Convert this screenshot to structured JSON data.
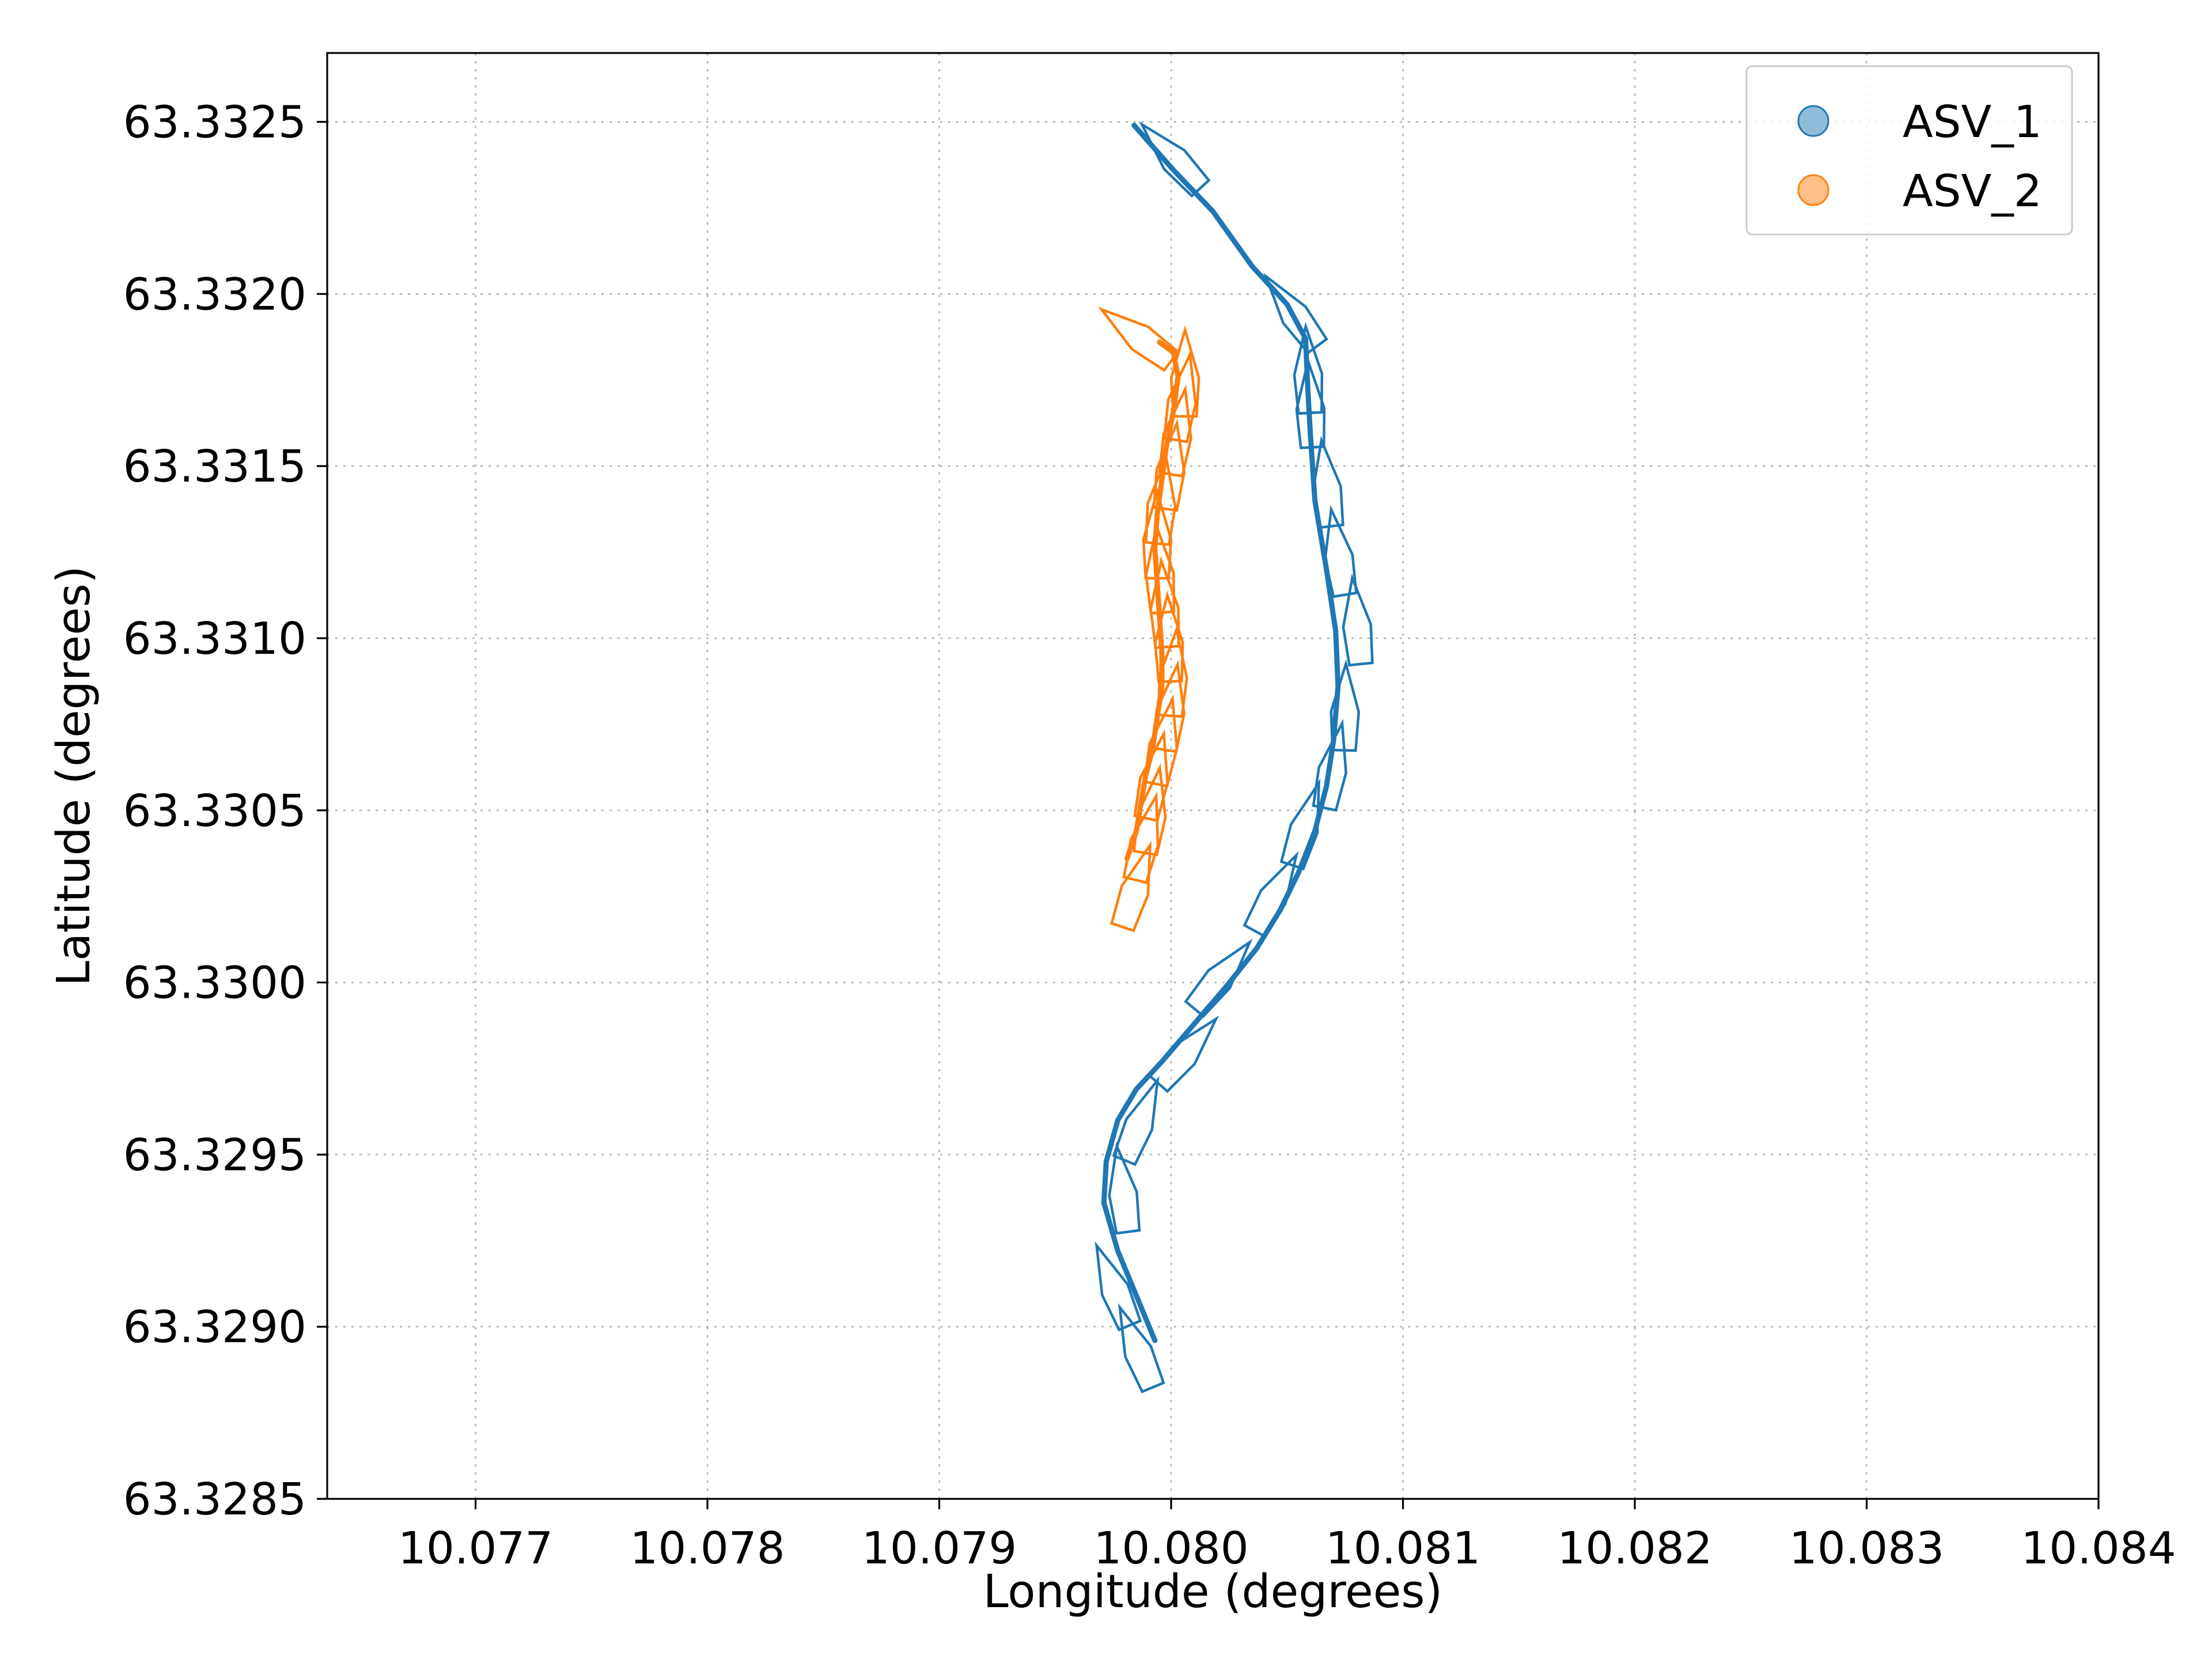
{
  "chart_data": {
    "type": "line",
    "xlabel": "Longitude (degrees)",
    "ylabel": "Latitude (degrees)",
    "xlim": [
      10.07636,
      10.084
    ],
    "ylim": [
      63.3285,
      63.3327
    ],
    "xticks": [
      "10.077",
      "10.078",
      "10.079",
      "10.080",
      "10.081",
      "10.082",
      "10.083",
      "10.084"
    ],
    "yticks": [
      "63.3285",
      "63.3290",
      "63.3295",
      "63.3300",
      "63.3305",
      "63.3310",
      "63.3315",
      "63.3320",
      "63.3325"
    ],
    "grid": true,
    "legend_position": "top-right",
    "series": [
      {
        "name": "ASV_1",
        "color": "#1f77b4",
        "track": [
          [
            10.07993,
            63.32896
          ],
          [
            10.07985,
            63.32909
          ],
          [
            10.07977,
            63.32922
          ],
          [
            10.07971,
            63.32936
          ],
          [
            10.07972,
            63.32948
          ],
          [
            10.07977,
            63.3296
          ],
          [
            10.07985,
            63.32969
          ],
          [
            10.07996,
            63.32977
          ],
          [
            10.0801,
            63.32988
          ],
          [
            10.08024,
            63.32999
          ],
          [
            10.08037,
            63.3301
          ],
          [
            10.08047,
            63.33021
          ],
          [
            10.08055,
            63.33032
          ],
          [
            10.08062,
            63.33044
          ],
          [
            10.08067,
            63.33057
          ],
          [
            10.0807,
            63.3307
          ],
          [
            10.08072,
            63.33086
          ],
          [
            10.08071,
            63.33102
          ],
          [
            10.08067,
            63.3312
          ],
          [
            10.08062,
            63.3314
          ],
          [
            10.0806,
            63.3316
          ],
          [
            10.08059,
            63.33172
          ],
          [
            10.08058,
            63.33187
          ],
          [
            10.0805,
            63.33197
          ],
          [
            10.08035,
            63.33208
          ],
          [
            10.08018,
            63.33224
          ],
          [
            10.08001,
            63.33236
          ],
          [
            10.07984,
            63.33249
          ]
        ],
        "boats": [
          [
            10.07985,
            63.32894
          ],
          [
            10.07975,
            63.32912
          ],
          [
            10.07979,
            63.3294
          ],
          [
            10.07987,
            63.3296
          ],
          [
            10.08007,
            63.3298
          ],
          [
            10.08022,
            63.33002
          ],
          [
            10.08045,
            63.33026
          ],
          [
            10.08058,
            63.33046
          ],
          [
            10.0807,
            63.33063
          ],
          [
            10.08075,
            63.3308
          ],
          [
            10.0808,
            63.33105
          ],
          [
            10.08072,
            63.33125
          ],
          [
            10.08067,
            63.33145
          ],
          [
            10.0806,
            63.33168
          ],
          [
            10.08059,
            63.33178
          ],
          [
            10.08052,
            63.33195
          ],
          [
            10.08,
            63.3324
          ]
        ]
      },
      {
        "name": "ASV_2",
        "color": "#ff7f0e",
        "track": [
          [
            10.07981,
            63.33036
          ],
          [
            10.07985,
            63.33044
          ],
          [
            10.07987,
            63.33052
          ],
          [
            10.07989,
            63.3306
          ],
          [
            10.07992,
            63.33068
          ],
          [
            10.07994,
            63.33077
          ],
          [
            10.07996,
            63.33086
          ],
          [
            10.07996,
            63.33096
          ],
          [
            10.07995,
            63.33106
          ],
          [
            10.07994,
            63.33116
          ],
          [
            10.07993,
            63.33126
          ],
          [
            10.07994,
            63.33136
          ],
          [
            10.07996,
            63.33146
          ],
          [
            10.07998,
            63.33156
          ],
          [
            10.08001,
            63.33166
          ],
          [
            10.08003,
            63.33176
          ],
          [
            10.08001,
            63.33183
          ],
          [
            10.07995,
            63.33186
          ]
        ],
        "boats": [
          [
            10.07985,
            63.33028
          ],
          [
            10.07989,
            63.33042
          ],
          [
            10.07992,
            63.3305
          ],
          [
            10.07993,
            63.3306
          ],
          [
            10.07997,
            63.3307
          ],
          [
            10.08,
            63.3308
          ],
          [
            10.08001,
            63.3309
          ],
          [
            10.07999,
            63.331
          ],
          [
            10.07997,
            63.3311
          ],
          [
            10.07995,
            63.3312
          ],
          [
            10.07994,
            63.3313
          ],
          [
            10.07996,
            63.3314
          ],
          [
            10.08,
            63.3315
          ],
          [
            10.08003,
            63.3316
          ],
          [
            10.08005,
            63.3317
          ],
          [
            10.08006,
            63.33177
          ],
          [
            10.07985,
            63.33188
          ]
        ]
      }
    ]
  }
}
